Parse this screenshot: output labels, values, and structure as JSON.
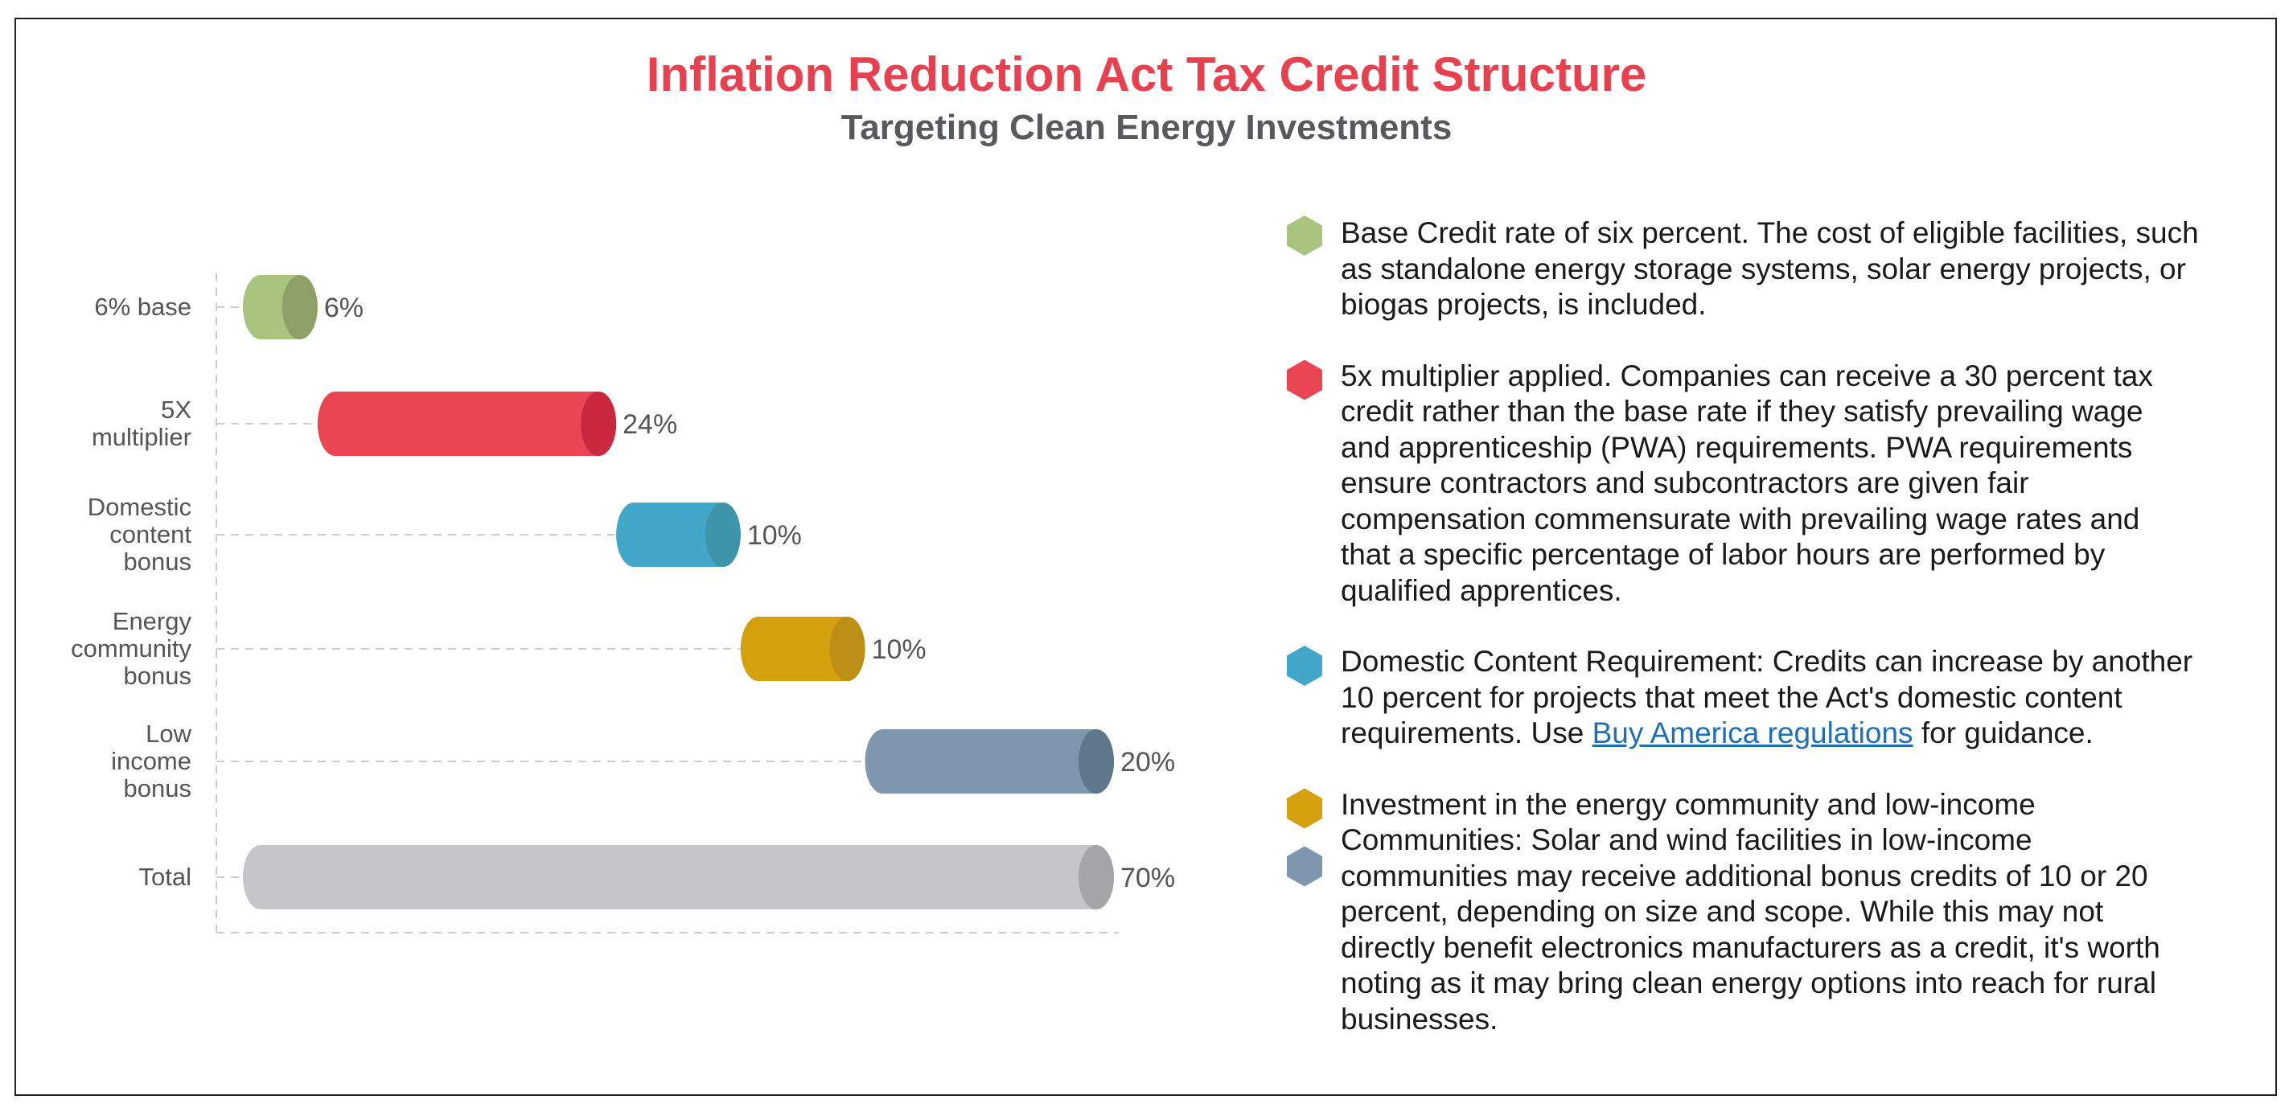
{
  "title": "Inflation Reduction Act Tax Credit Structure",
  "subtitle": "Targeting Clean Energy Investments",
  "chart_data": {
    "type": "bar",
    "subtype": "waterfall",
    "orientation": "horizontal",
    "categories": [
      [
        "6% base"
      ],
      [
        "5X",
        "multiplier"
      ],
      [
        "Domestic",
        "content",
        "bonus"
      ],
      [
        "Energy",
        "community",
        "bonus"
      ],
      [
        "Low",
        "income",
        "bonus"
      ],
      [
        "Total"
      ]
    ],
    "values": [
      6,
      24,
      10,
      10,
      20,
      70
    ],
    "data_labels": [
      "6%",
      "24%",
      "10%",
      "10%",
      "20%",
      "70%"
    ],
    "colors": [
      "#a9c47f",
      "#ea4553",
      "#42a7c8",
      "#d4a00d",
      "#7f97ae",
      "#c5c6c8"
    ],
    "cap_colors": [
      "#8da066",
      "#c9283f",
      "#3e95a9",
      "#be8f16",
      "#5f778b",
      "#a4a5a7"
    ],
    "xlim": [
      0,
      70
    ],
    "grid": false
  },
  "legend": [
    {
      "color": "#a9c47f",
      "lines": [
        "Base Credit rate of six percent. The cost of eligible facilities, such",
        "as standalone energy storage systems, solar energy projects, or",
        "biogas projects, is included."
      ]
    },
    {
      "color": "#ea4553",
      "lines": [
        "5x multiplier applied. Companies can receive a 30 percent tax",
        "credit rather than the base rate if they satisfy prevailing wage",
        "and apprenticeship (PWA) requirements. PWA requirements",
        "ensure contractors and subcontractors are given fair",
        "compensation commensurate with prevailing wage rates and",
        "that a specific percentage of labor hours are performed by",
        "qualified apprentices."
      ]
    },
    {
      "color": "#42a7c8",
      "lines": [
        "Domestic Content Requirement: Credits can increase by another",
        "10 percent for projects that meet the Act's domestic content"
      ],
      "last_prefix": "requirements. Use ",
      "link": "Buy America regulations",
      "last_suffix": " for guidance."
    },
    {
      "colors": [
        "#d4a00d",
        "#7f97ae"
      ],
      "lines": [
        "Investment in the energy community and low-income",
        "Communities: Solar and wind facilities in low-income",
        "communities may receive additional bonus credits of 10 or 20",
        "percent, depending on size and scope. While this may not",
        "directly benefit electronics manufacturers as a credit, it's worth",
        "noting as it may bring clean energy options into reach for rural",
        "businesses."
      ]
    }
  ]
}
